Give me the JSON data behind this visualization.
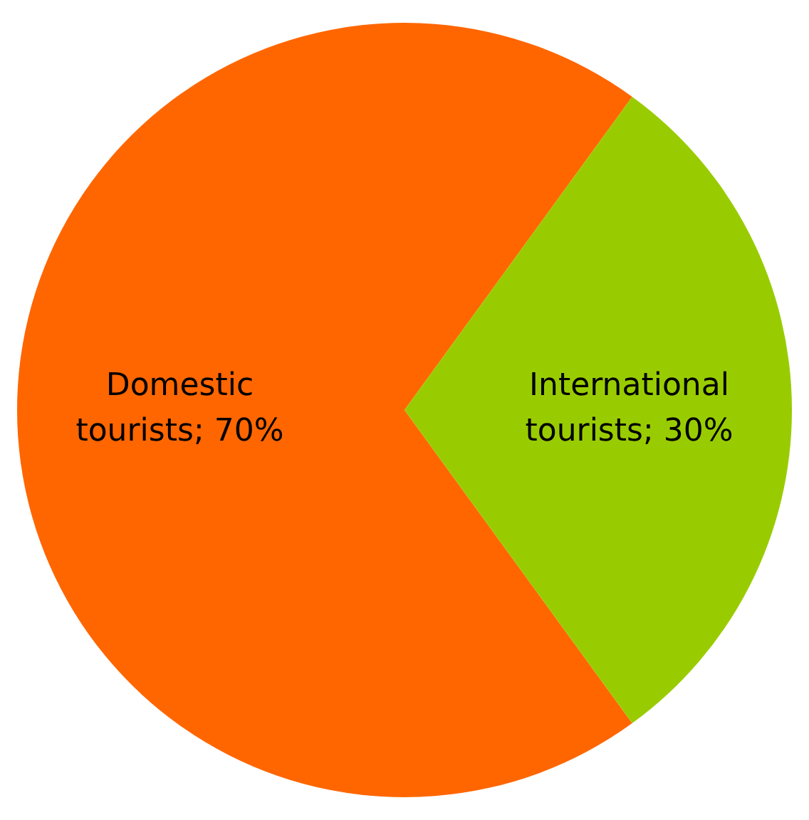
{
  "chart_data": {
    "type": "pie",
    "categories": [
      "Domestic tourists",
      "International tourists"
    ],
    "values": [
      70,
      30
    ],
    "colors": [
      "#ff6600",
      "#99cc00"
    ],
    "value_labels": [
      "70%",
      "30%"
    ],
    "legend": false
  }
}
